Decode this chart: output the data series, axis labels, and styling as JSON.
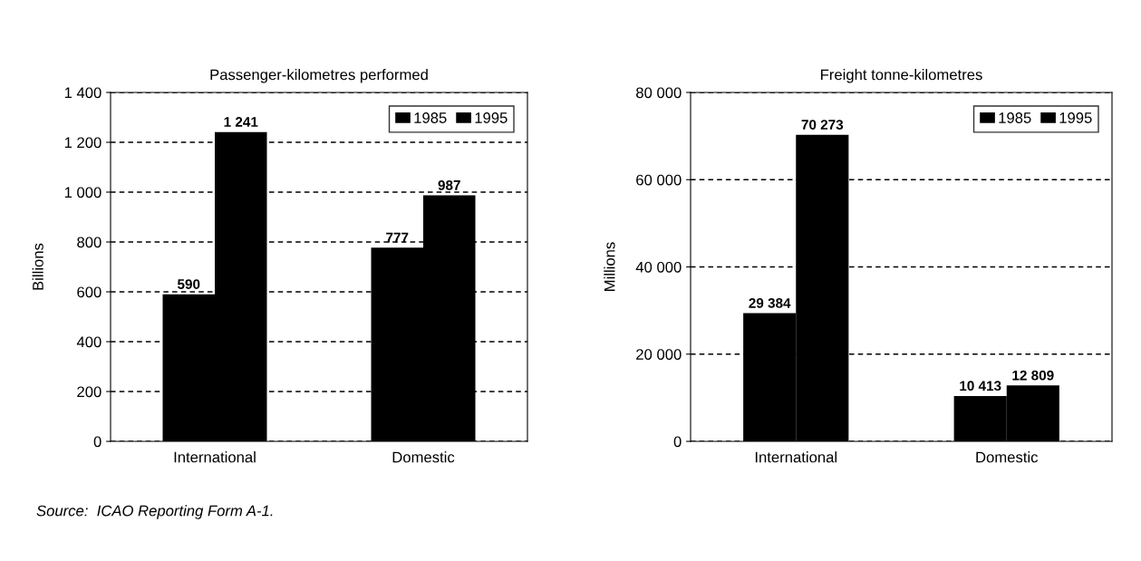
{
  "chart_data": [
    {
      "type": "bar",
      "title": "Passenger-kilometres performed",
      "ylabel": "Billions",
      "categories": [
        "International",
        "Domestic"
      ],
      "series": [
        {
          "name": "1985",
          "color": "#000000",
          "values": [
            590,
            777
          ],
          "value_labels": [
            "590",
            "777"
          ]
        },
        {
          "name": "1995",
          "color": "#000000",
          "values": [
            1241,
            987
          ],
          "value_labels": [
            "1 241",
            "987"
          ]
        }
      ],
      "ylim": [
        0,
        1400
      ],
      "yticks": [
        0,
        200,
        400,
        600,
        800,
        {
          "value": 1000,
          "label": "1 000"
        },
        {
          "value": 1200,
          "label": "1 200"
        },
        {
          "value": 1400,
          "label": "1 400"
        }
      ],
      "grid": "y",
      "legend": "top right",
      "annotations": [
        "Source:  ICAO Reporting Form A-1."
      ]
    },
    {
      "type": "bar",
      "title": "Freight tonne-kilometres",
      "ylabel": "Millions",
      "categories": [
        "International",
        "Domestic"
      ],
      "series": [
        {
          "name": "1985",
          "color": "#000000",
          "values": [
            29384,
            10413
          ],
          "value_labels": [
            "29 384",
            "10 413"
          ]
        },
        {
          "name": "1995",
          "color": "#000000",
          "values": [
            70273,
            12809
          ],
          "value_labels": [
            "70 273",
            "12 809"
          ]
        }
      ],
      "ylim": [
        0,
        80000
      ],
      "yticks": [
        0,
        {
          "value": 20000,
          "label": "20 000"
        },
        {
          "value": 40000,
          "label": "40 000"
        },
        {
          "value": 60000,
          "label": "60 000"
        },
        {
          "value": 80000,
          "label": "80 000"
        }
      ],
      "grid": "y",
      "legend": "top right"
    }
  ]
}
